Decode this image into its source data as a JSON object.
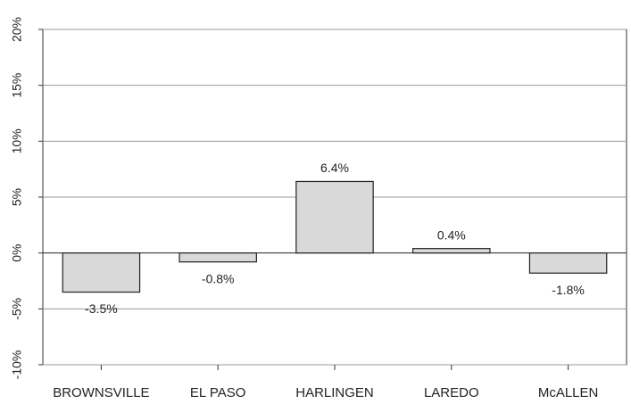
{
  "chart_data": {
    "type": "bar",
    "categories": [
      "BROWNSVILLE",
      "EL PASO",
      "HARLINGEN",
      "LAREDO",
      "McALLEN"
    ],
    "values": [
      -3.5,
      -0.8,
      6.4,
      0.4,
      -1.8
    ],
    "value_labels": [
      "-3.5%",
      "-0.8%",
      "6.4%",
      "0.4%",
      "-1.8%"
    ],
    "color": "#d9d9d9",
    "ylim": [
      -10,
      20
    ],
    "yticks": [
      {
        "value": -10,
        "label": "-10%"
      },
      {
        "value": -5,
        "label": "-5%"
      },
      {
        "value": 0,
        "label": "0%"
      },
      {
        "value": 5,
        "label": "5%"
      },
      {
        "value": 10,
        "label": "10%"
      },
      {
        "value": 15,
        "label": "15%"
      },
      {
        "value": 20,
        "label": "20%"
      }
    ],
    "grid": true
  }
}
